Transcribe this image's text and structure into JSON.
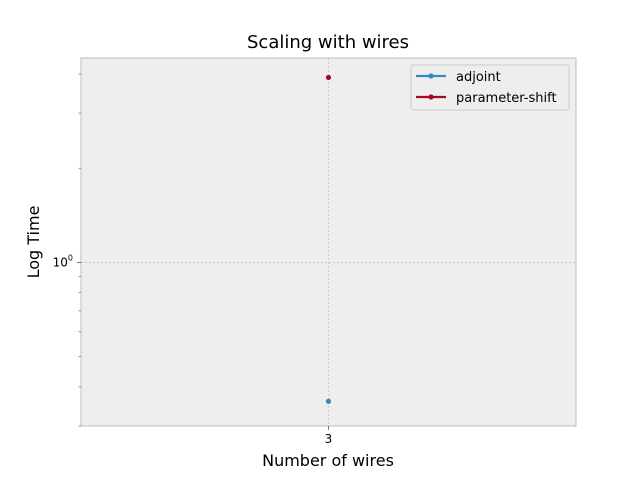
{
  "chart_data": {
    "type": "scatter",
    "title": "Scaling with wires",
    "xlabel": "Number of wires",
    "ylabel": "Log Time",
    "x_scale": "categorical",
    "y_scale": "log",
    "x_categories": [
      "3"
    ],
    "ylim": [
      0.3,
      4.5
    ],
    "y_major_ticks": [
      1
    ],
    "y_major_tick_labels": [
      "10",
      "0"
    ],
    "grid": true,
    "legend_position": "top-right",
    "series": [
      {
        "name": "adjoint",
        "x": [
          "3"
        ],
        "values": [
          0.36
        ],
        "color": "#348ABD"
      },
      {
        "name": "parameter-shift",
        "x": [
          "3"
        ],
        "values": [
          3.9
        ],
        "color": "#A60628"
      }
    ]
  },
  "colors": {
    "plot_background": "#EEEEEE",
    "axes_edge": "#BCBCBC",
    "grid": "#B2B2B2"
  }
}
